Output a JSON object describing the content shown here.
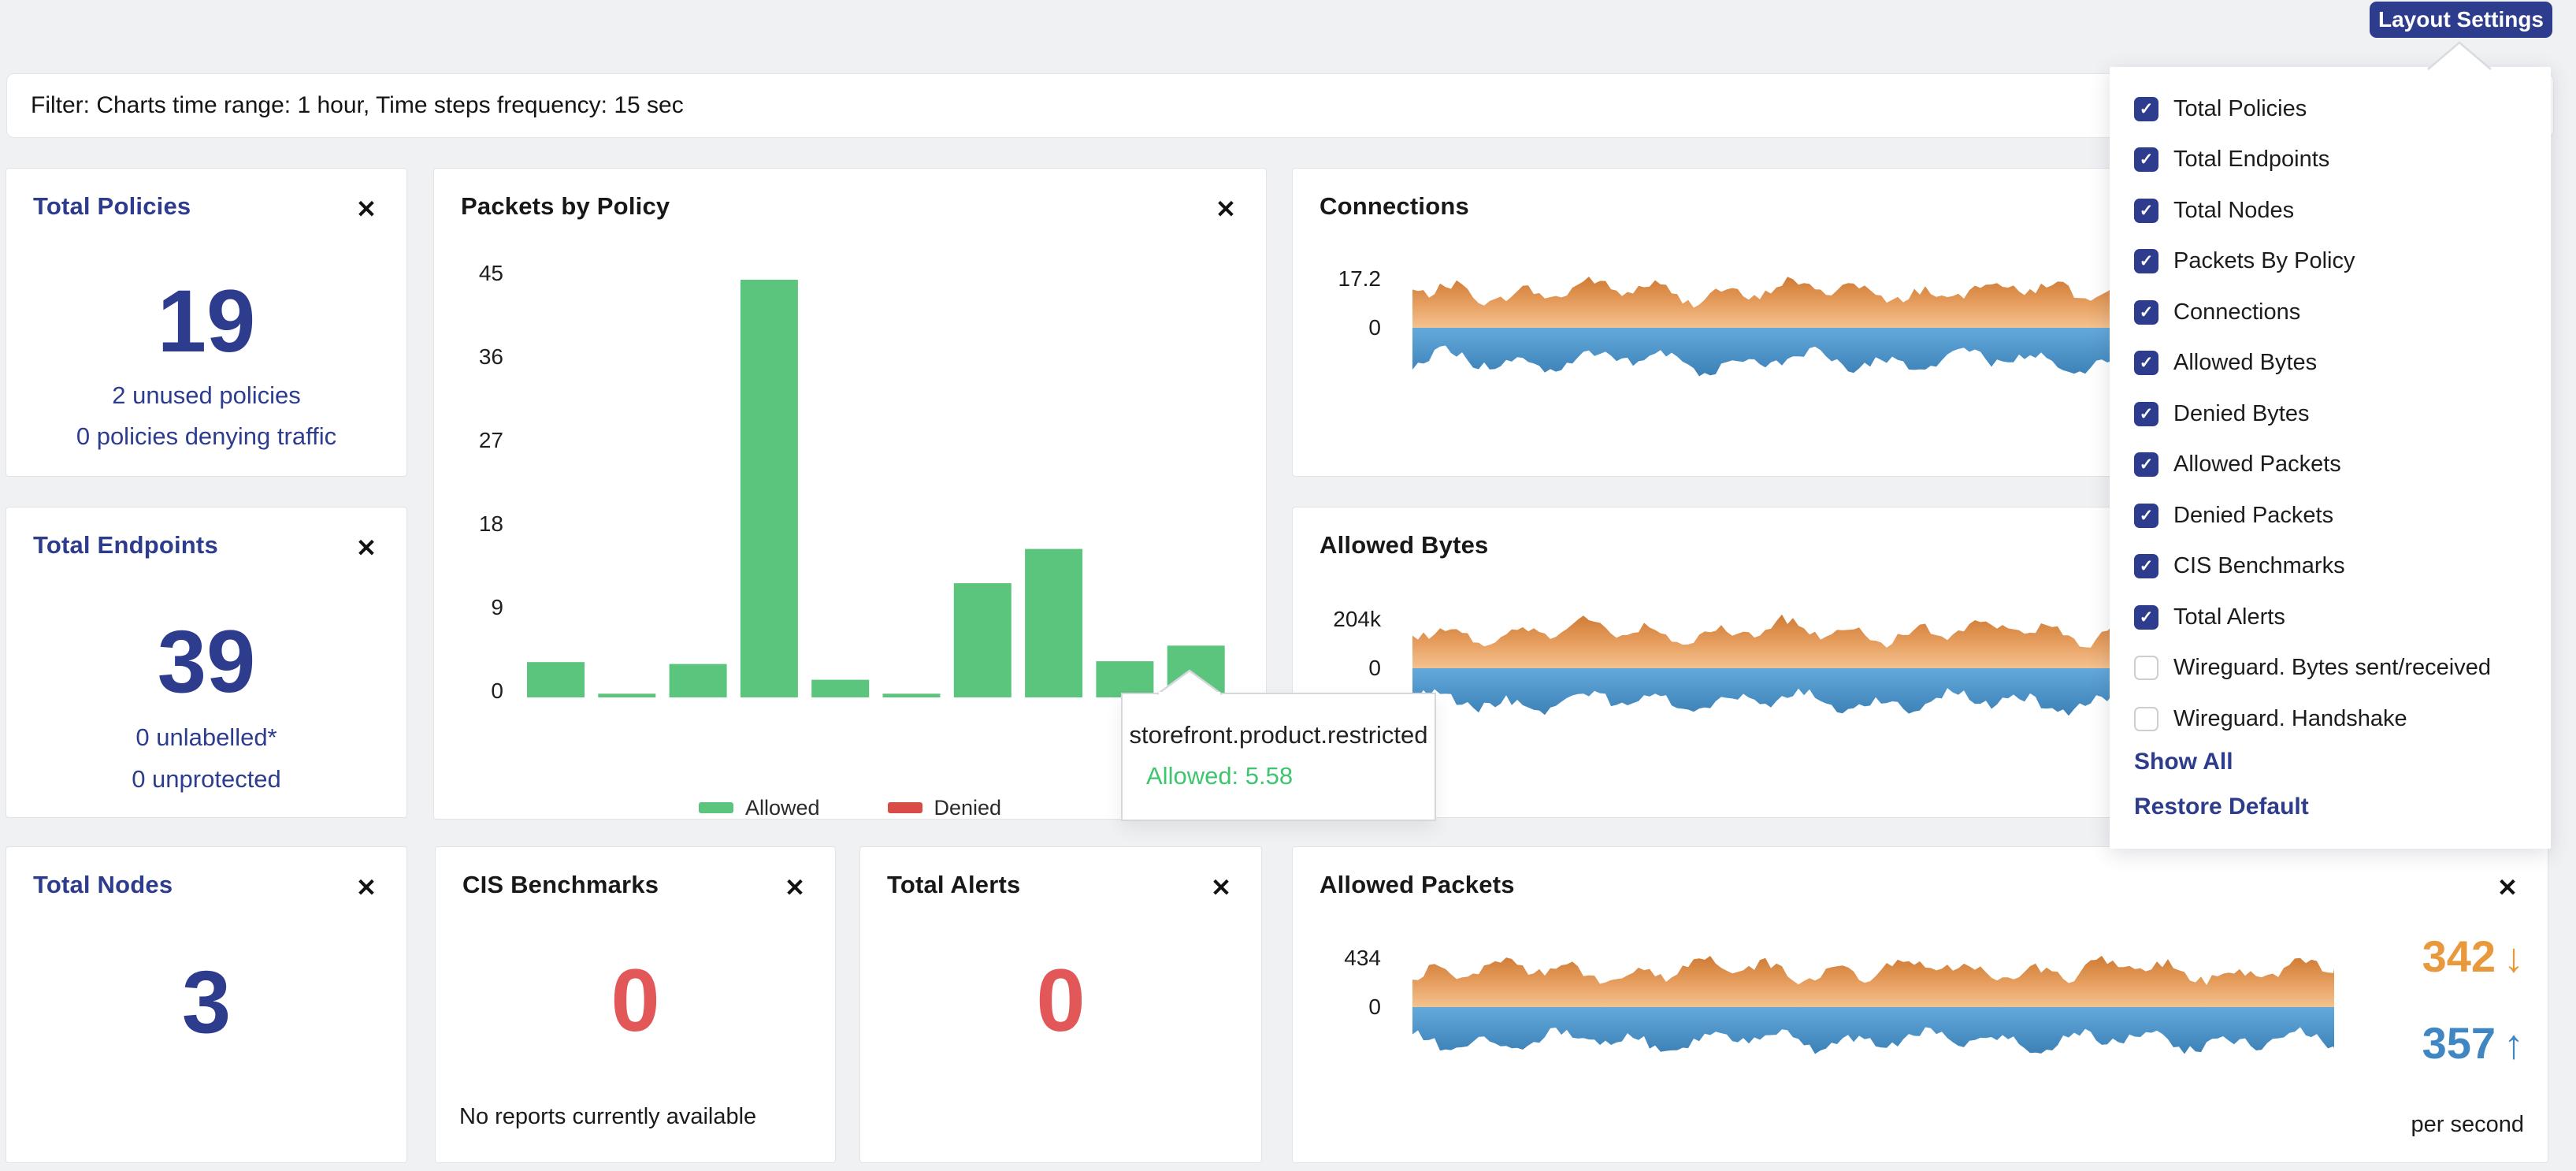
{
  "colors": {
    "brand_blue": "#2e3c8e",
    "steel_blue": "#3f86c2",
    "orange": "#e8993c",
    "red": "#e25757",
    "green": "#5cc57d",
    "legend_red": "#d84b47",
    "tooltip_green": "#3fc46f"
  },
  "icons": {
    "check": "✓",
    "close": "✕",
    "arrow_down": "↓",
    "arrow_up": "↑"
  },
  "header": {
    "layout_settings_button": "Layout Settings"
  },
  "filter_bar": {
    "text": "Filter: Charts time range: 1 hour, Time steps frequency: 15 sec"
  },
  "layout_menu": {
    "items": [
      {
        "label": "Total Policies",
        "checked": true
      },
      {
        "label": "Total Endpoints",
        "checked": true
      },
      {
        "label": "Total Nodes",
        "checked": true
      },
      {
        "label": "Packets By Policy",
        "checked": true
      },
      {
        "label": "Connections",
        "checked": true
      },
      {
        "label": "Allowed Bytes",
        "checked": true
      },
      {
        "label": "Denied Bytes",
        "checked": true
      },
      {
        "label": "Allowed Packets",
        "checked": true
      },
      {
        "label": "Denied Packets",
        "checked": true
      },
      {
        "label": "CIS Benchmarks",
        "checked": true
      },
      {
        "label": "Total Alerts",
        "checked": true
      },
      {
        "label": "Wireguard. Bytes sent/received",
        "checked": false
      },
      {
        "label": "Wireguard. Handshake",
        "checked": false
      }
    ],
    "show_all": "Show All",
    "restore_default": "Restore Default"
  },
  "cards": {
    "total_policies": {
      "title": "Total Policies",
      "value": "19",
      "lines": [
        "2 unused policies",
        "0 policies denying traffic"
      ]
    },
    "total_endpoints": {
      "title": "Total Endpoints",
      "value": "39",
      "lines": [
        "0 unlabelled*",
        "0 unprotected"
      ]
    },
    "total_nodes": {
      "title": "Total Nodes",
      "value": "3"
    },
    "cis_benchmarks": {
      "title": "CIS Benchmarks",
      "value": "0",
      "note": "No reports currently available"
    },
    "total_alerts": {
      "title": "Total Alerts",
      "value": "0"
    },
    "packets_by_policy": {
      "title": "Packets by Policy"
    },
    "connections": {
      "title": "Connections"
    },
    "allowed_bytes": {
      "title": "Allowed Bytes"
    },
    "allowed_packets": {
      "title": "Allowed Packets",
      "received": "342",
      "sent": "357",
      "unit": "per second"
    }
  },
  "tooltip": {
    "title": "storefront.product.restricted",
    "value": "Allowed: 5.58"
  },
  "chart_data": [
    {
      "type": "bar",
      "title": "Packets by Policy",
      "xlabel": "",
      "ylabel": "",
      "x_tick_labels_visible": false,
      "ylim": [
        0,
        45
      ],
      "yticks": [
        0,
        9,
        18,
        27,
        36,
        45
      ],
      "legend_position": "bottom",
      "series": [
        {
          "name": "Allowed",
          "color": "#5cc57d",
          "values": [
            3.8,
            0.4,
            3.6,
            45,
            1.9,
            0.4,
            12.3,
            16,
            3.9,
            5.58
          ]
        },
        {
          "name": "Denied",
          "color": "#d84b47",
          "values": [
            0,
            0,
            0,
            0,
            0,
            0,
            0,
            0,
            0,
            0
          ]
        }
      ],
      "hover": {
        "bar_index": 9,
        "label": "storefront.product.restricted",
        "value": 5.58
      }
    },
    {
      "type": "area",
      "title": "Connections",
      "y_axis_labels": [
        "17.2",
        "0"
      ],
      "bands": [
        {
          "name": "inbound",
          "color": "orange-gradient",
          "approx_peak": 17.2
        },
        {
          "name": "outbound",
          "color": "blue-gradient",
          "approx_peak": -15
        }
      ]
    },
    {
      "type": "area",
      "title": "Allowed Bytes",
      "y_axis_labels": [
        "204k",
        "0"
      ],
      "bands": [
        {
          "name": "inbound",
          "color": "orange-gradient",
          "approx_peak": 204000
        },
        {
          "name": "outbound",
          "color": "blue-gradient",
          "approx_peak": -180000
        }
      ]
    },
    {
      "type": "area",
      "title": "Allowed Packets",
      "y_axis_labels": [
        "434",
        "0"
      ],
      "bands": [
        {
          "name": "inbound",
          "color": "orange-gradient",
          "approx_peak": 434
        },
        {
          "name": "outbound",
          "color": "blue-gradient",
          "approx_peak": -380
        }
      ],
      "stats": {
        "received_per_sec": 342,
        "sent_per_sec": 357,
        "unit": "per second"
      }
    }
  ]
}
